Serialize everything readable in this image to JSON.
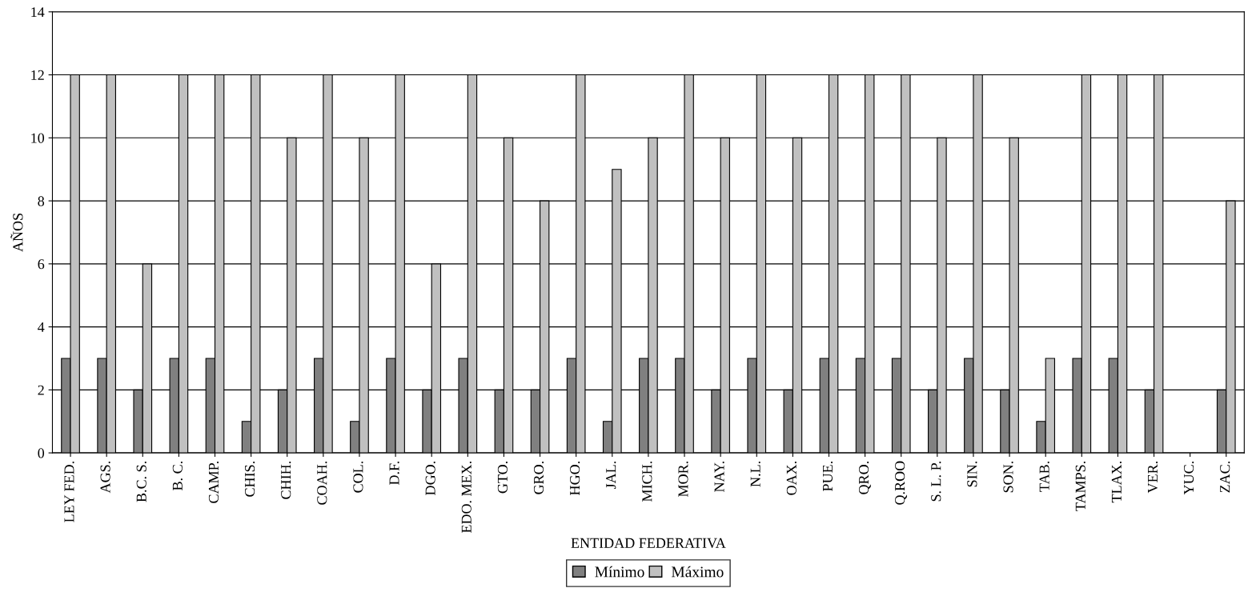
{
  "chart_data": {
    "type": "bar",
    "xlabel": "ENTIDAD FEDERATIVA",
    "ylabel": "AÑOS",
    "categories": [
      "LEY FED.",
      "AGS.",
      "B.C. S.",
      "B. C.",
      "CAMP.",
      "CHIS.",
      "CHIH.",
      "COAH.",
      "COL.",
      "D.F.",
      "DGO.",
      "EDO. MEX.",
      "GTO.",
      "GRO.",
      "HGO.",
      "JAL.",
      "MICH.",
      "MOR.",
      "NAY.",
      "N.L.",
      "OAX.",
      "PUE.",
      "QRO.",
      "Q.ROO",
      "S. L. P.",
      "SIN.",
      "SON.",
      "TAB.",
      "TAMPS.",
      "TLAX.",
      "VER.",
      "YUC.",
      "ZAC."
    ],
    "series": [
      {
        "name": "Mínimo",
        "color": "#808080",
        "values": [
          3,
          3,
          2,
          3,
          3,
          1,
          2,
          3,
          1,
          3,
          2,
          3,
          2,
          2,
          3,
          1,
          3,
          3,
          2,
          3,
          2,
          3,
          3,
          3,
          2,
          3,
          2,
          1,
          3,
          3,
          2,
          null,
          2
        ]
      },
      {
        "name": "Máximo",
        "color": "#c0c0c0",
        "values": [
          12,
          12,
          6,
          12,
          12,
          12,
          10,
          12,
          10,
          12,
          6,
          12,
          10,
          8,
          12,
          9,
          10,
          12,
          10,
          12,
          10,
          12,
          12,
          12,
          10,
          12,
          10,
          3,
          12,
          12,
          12,
          null,
          8
        ]
      }
    ],
    "ylim": [
      0,
      14
    ],
    "yticks": [
      0,
      2,
      4,
      6,
      8,
      10,
      12,
      14
    ],
    "grid": "y",
    "legend": "bottom"
  }
}
